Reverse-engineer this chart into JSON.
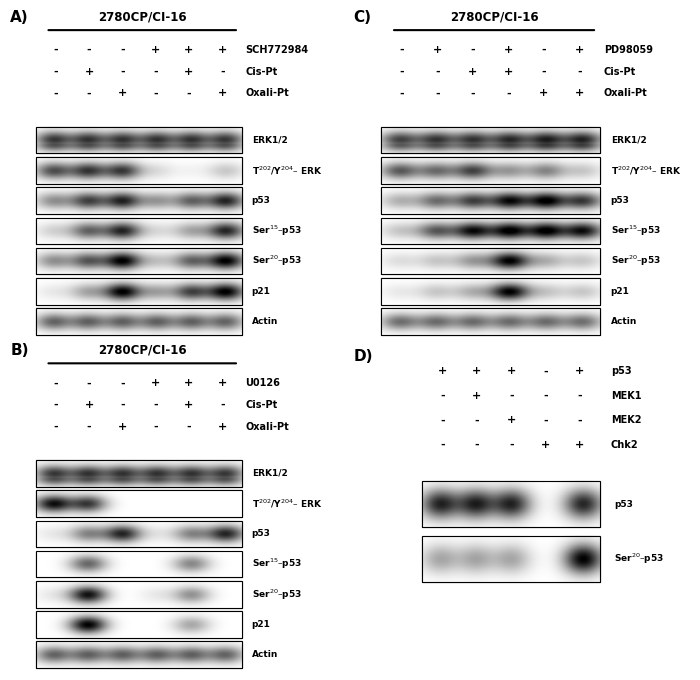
{
  "bg_color": "#ffffff",
  "panels": {
    "A": {
      "title": "2780CP/CI-16",
      "label": "A)",
      "rows": [
        {
          "signs": [
            "-",
            "-",
            "-",
            "+",
            "+",
            "+"
          ],
          "label": "SCH772984"
        },
        {
          "signs": [
            "-",
            "+",
            "-",
            "-",
            "+",
            "-"
          ],
          "label": "Cis-Pt"
        },
        {
          "signs": [
            "-",
            "-",
            "+",
            "-",
            "-",
            "+"
          ],
          "label": "Oxali-Pt"
        }
      ],
      "bands": [
        {
          "name": "ERK1/2",
          "double": true,
          "pattern": [
            0.9,
            0.9,
            0.9,
            0.9,
            0.9,
            0.9
          ]
        },
        {
          "name": "T$^{202}$/Y$^{204}$– ERK",
          "double": false,
          "pattern": [
            0.8,
            0.9,
            0.9,
            0.15,
            0.05,
            0.25
          ]
        },
        {
          "name": "p53",
          "double": false,
          "pattern": [
            0.5,
            0.85,
            1.0,
            0.45,
            0.7,
            1.0
          ]
        },
        {
          "name": "Ser$^{15}$–p53",
          "double": false,
          "pattern": [
            0.2,
            0.7,
            1.0,
            0.15,
            0.4,
            1.0
          ]
        },
        {
          "name": "Ser$^{20}$–p53",
          "double": false,
          "pattern": [
            0.5,
            0.75,
            1.2,
            0.25,
            0.7,
            1.2
          ]
        },
        {
          "name": "p21",
          "double": false,
          "pattern": [
            0.1,
            0.4,
            1.8,
            0.4,
            0.85,
            2.0
          ]
        },
        {
          "name": "Actin",
          "double": false,
          "pattern": [
            0.7,
            0.7,
            0.7,
            0.7,
            0.7,
            0.7
          ]
        }
      ]
    },
    "B": {
      "title": "2780CP/CI-16",
      "label": "B)",
      "rows": [
        {
          "signs": [
            "-",
            "-",
            "-",
            "+",
            "+",
            "+"
          ],
          "label": "U0126"
        },
        {
          "signs": [
            "-",
            "+",
            "-",
            "-",
            "+",
            "-"
          ],
          "label": "Cis-Pt"
        },
        {
          "signs": [
            "-",
            "-",
            "+",
            "-",
            "-",
            "+"
          ],
          "label": "Oxali-Pt"
        }
      ],
      "bands": [
        {
          "name": "ERK1/2",
          "double": true,
          "pattern": [
            0.9,
            0.9,
            0.9,
            0.9,
            0.9,
            0.9
          ]
        },
        {
          "name": "T$^{202}$/Y$^{204}$– ERK",
          "double": false,
          "pattern": [
            1.1,
            0.9,
            0.0,
            0.0,
            0.0,
            0.0
          ]
        },
        {
          "name": "p53",
          "double": false,
          "pattern": [
            0.1,
            0.55,
            1.0,
            0.1,
            0.55,
            1.0
          ]
        },
        {
          "name": "Ser$^{15}$–p53",
          "double": false,
          "pattern": [
            0.0,
            0.7,
            0.0,
            0.0,
            0.55,
            0.0
          ]
        },
        {
          "name": "Ser$^{20}$–p53",
          "double": false,
          "pattern": [
            0.1,
            1.1,
            0.0,
            0.1,
            0.5,
            0.0
          ]
        },
        {
          "name": "p21",
          "double": false,
          "pattern": [
            0.0,
            1.6,
            0.0,
            0.0,
            0.4,
            0.0
          ]
        },
        {
          "name": "Actin",
          "double": false,
          "pattern": [
            0.7,
            0.7,
            0.7,
            0.7,
            0.7,
            0.7
          ]
        }
      ]
    },
    "C": {
      "title": "2780CP/CI-16",
      "label": "C)",
      "rows": [
        {
          "signs": [
            "-",
            "+",
            "-",
            "+",
            "-",
            "+"
          ],
          "label": "PD98059"
        },
        {
          "signs": [
            "-",
            "-",
            "+",
            "+",
            "-",
            "-"
          ],
          "label": "Cis-Pt"
        },
        {
          "signs": [
            "-",
            "-",
            "-",
            "-",
            "+",
            "+"
          ],
          "label": "Oxali-Pt"
        }
      ],
      "bands": [
        {
          "name": "ERK1/2",
          "double": true,
          "pattern": [
            0.85,
            0.9,
            0.9,
            0.95,
            1.0,
            1.0
          ]
        },
        {
          "name": "T$^{202}$/Y$^{204}$– ERK",
          "double": false,
          "pattern": [
            0.75,
            0.65,
            0.85,
            0.45,
            0.55,
            0.25
          ]
        },
        {
          "name": "p53",
          "double": false,
          "pattern": [
            0.35,
            0.65,
            0.85,
            1.1,
            1.4,
            0.9
          ]
        },
        {
          "name": "Ser$^{15}$–p53",
          "double": false,
          "pattern": [
            0.25,
            0.75,
            1.1,
            1.4,
            1.4,
            1.1
          ]
        },
        {
          "name": "Ser$^{20}$–p53",
          "double": false,
          "pattern": [
            0.15,
            0.25,
            0.45,
            1.4,
            0.35,
            0.25
          ]
        },
        {
          "name": "p21",
          "double": false,
          "pattern": [
            0.1,
            0.25,
            0.35,
            1.9,
            0.25,
            0.25
          ]
        },
        {
          "name": "Actin",
          "double": false,
          "pattern": [
            0.65,
            0.65,
            0.65,
            0.65,
            0.65,
            0.65
          ]
        }
      ]
    },
    "D": {
      "label": "D)",
      "rows": [
        {
          "signs": [
            "+",
            "+",
            "+",
            "-",
            "+"
          ],
          "label": "p53"
        },
        {
          "signs": [
            "-",
            "+",
            "-",
            "-",
            "-"
          ],
          "label": "MEK1"
        },
        {
          "signs": [
            "-",
            "-",
            "+",
            "-",
            "-"
          ],
          "label": "MEK2"
        },
        {
          "signs": [
            "-",
            "-",
            "-",
            "+",
            "+"
          ],
          "label": "Chk2"
        }
      ],
      "bands": [
        {
          "name": "p53",
          "double": false,
          "pattern": [
            1.0,
            1.0,
            1.0,
            0.0,
            1.0
          ]
        },
        {
          "name": "Ser$^{20}$–p53",
          "double": false,
          "pattern": [
            0.4,
            0.4,
            0.4,
            0.0,
            1.3
          ]
        }
      ]
    }
  }
}
